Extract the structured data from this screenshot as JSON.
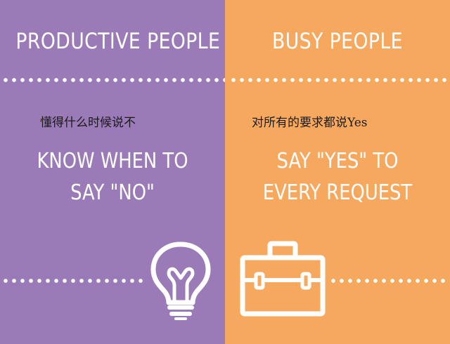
{
  "left_panel": {
    "title": "PRODUCTIVE PEOPLE",
    "subtitle_cn": "懂得什么时候说不",
    "statement_line1": "KNOW WHEN TO",
    "statement_line2": "SAY \"NO\"",
    "background_color": "#9b7bb7",
    "icon": "lightbulb-icon"
  },
  "right_panel": {
    "title": "BUSY PEOPLE",
    "subtitle_cn": "对所有的要求都说Yes",
    "statement_line1": "SAY \"YES\" TO",
    "statement_line2": "EVERY REQUEST",
    "background_color": "#f6a95e",
    "icon": "briefcase-icon"
  },
  "colors": {
    "text": "#ffffff",
    "subtitle_text": "#1a1a1a"
  }
}
